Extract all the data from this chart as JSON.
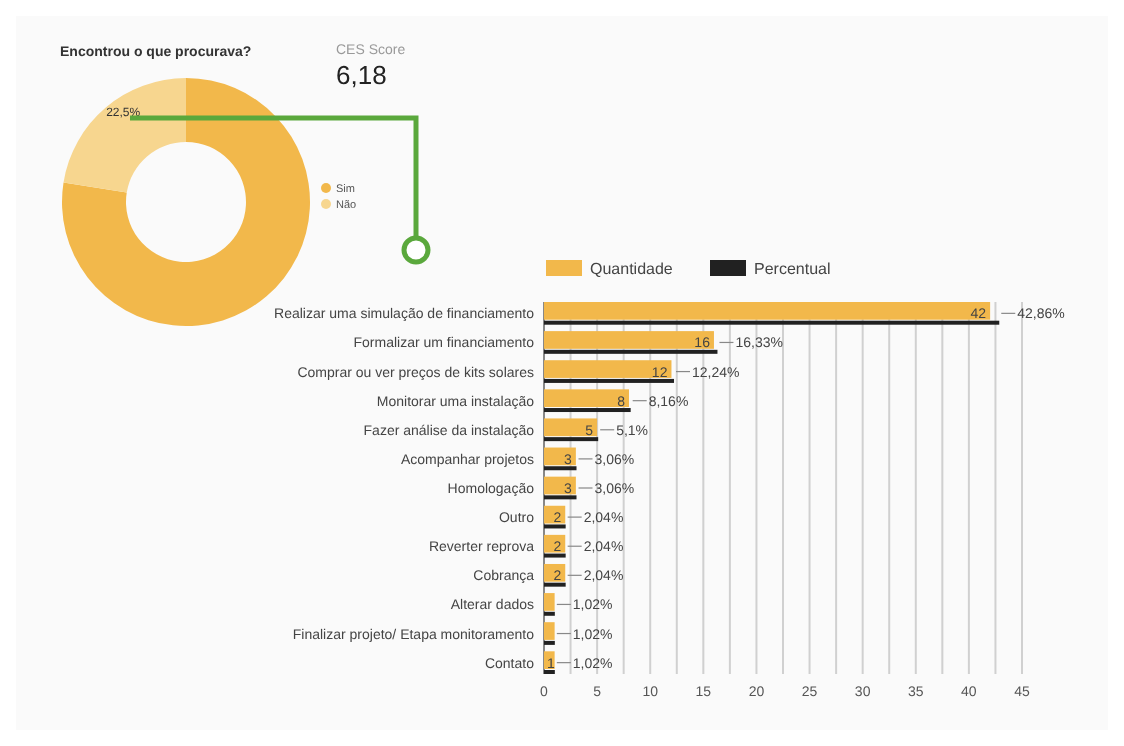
{
  "chart_data": [
    {
      "type": "donut",
      "title": "Encontrou o que procurava?",
      "categories": [
        "Sim",
        "Não"
      ],
      "values": [
        77.5,
        22.5
      ],
      "colors": [
        "#f2b84b",
        "#f7d68f"
      ],
      "value_labels": [
        null,
        "22,5%"
      ],
      "legend": "right"
    },
    {
      "type": "other",
      "title": "CES Score",
      "annotations": [
        "6,18"
      ]
    },
    {
      "type": "bar",
      "orientation": "horizontal",
      "categories": [
        "Realizar uma simulação de financiamento",
        "Formalizar um financiamento",
        "Comprar ou ver preços de kits solares",
        "Monitorar uma instalação",
        "Fazer análise da instalação",
        "Acompanhar projetos",
        "Homologação",
        "Outro",
        "Reverter reprova",
        "Cobrança",
        "Alterar dados",
        "Finalizar projeto/ Etapa monitoramento",
        "Contato"
      ],
      "series": [
        {
          "name": "Quantidade",
          "color": "#f2b84b",
          "values": [
            42,
            16,
            12,
            8,
            5,
            3,
            3,
            2,
            2,
            2,
            1,
            1,
            1
          ],
          "value_labels": [
            "42",
            "16",
            "12",
            "8",
            "5",
            "3",
            "3",
            "2",
            "2",
            "2",
            null,
            null,
            "1"
          ]
        },
        {
          "name": "Percentual",
          "color": "#212121",
          "values": [
            42.86,
            16.33,
            12.24,
            8.16,
            5.1,
            3.06,
            3.06,
            2.04,
            2.04,
            2.04,
            1.02,
            1.02,
            1.02
          ],
          "value_labels": [
            "42,86%",
            "16,33%",
            "12,24%",
            "8,16%",
            "5,1%",
            "3,06%",
            "3,06%",
            "2,04%",
            "2,04%",
            "2,04%",
            "1,02%",
            "1,02%",
            "1,02%"
          ]
        }
      ],
      "xlim": [
        0,
        45
      ],
      "xticks": [
        0,
        {
          "value": 2.5,
          "label": null
        },
        5,
        {
          "value": 7.5,
          "label": null
        },
        10,
        {
          "value": 12.5,
          "label": null
        },
        15,
        {
          "value": 17.5,
          "label": null
        },
        20,
        {
          "value": 22.5,
          "label": null
        },
        25,
        {
          "value": 27.5,
          "label": null
        },
        30,
        {
          "value": 32.5,
          "label": null
        },
        35,
        {
          "value": 37.5,
          "label": null
        },
        40,
        {
          "value": 42.5,
          "label": null
        },
        45
      ],
      "grid": "x",
      "legend": "top"
    }
  ]
}
